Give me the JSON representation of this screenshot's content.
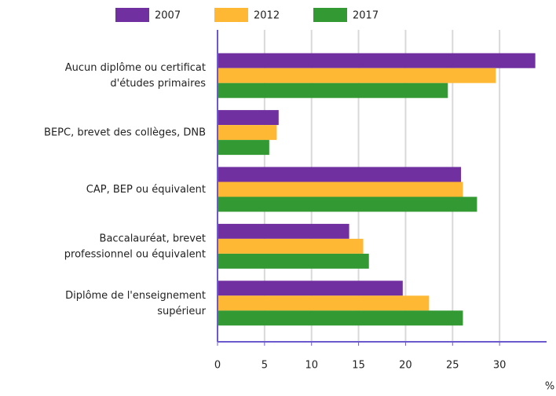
{
  "chart_data": {
    "type": "hbar",
    "categories": [
      "Aucun diplôme ou certificat\nd'études primaires",
      "BEPC, brevet des collèges, DNB",
      "CAP, BEP ou équivalent",
      "Baccalauréat, brevet\nprofessionnel ou équivalent",
      "Diplôme de l'enseignement\nsupérieur"
    ],
    "series": [
      {
        "name": "2007",
        "color": "#7030a0",
        "values": [
          33.8,
          6.5,
          25.9,
          14.0,
          19.7
        ]
      },
      {
        "name": "2012",
        "color": "#ffb833",
        "values": [
          29.6,
          6.3,
          26.1,
          15.5,
          22.5
        ]
      },
      {
        "name": "2017",
        "color": "#339933",
        "values": [
          24.5,
          5.5,
          27.6,
          16.1,
          26.1
        ]
      }
    ],
    "xlim": [
      0,
      35
    ],
    "xticks": [
      0,
      5,
      10,
      15,
      20,
      25,
      30
    ],
    "xlabel": "%",
    "grid": true,
    "legend": "top"
  }
}
